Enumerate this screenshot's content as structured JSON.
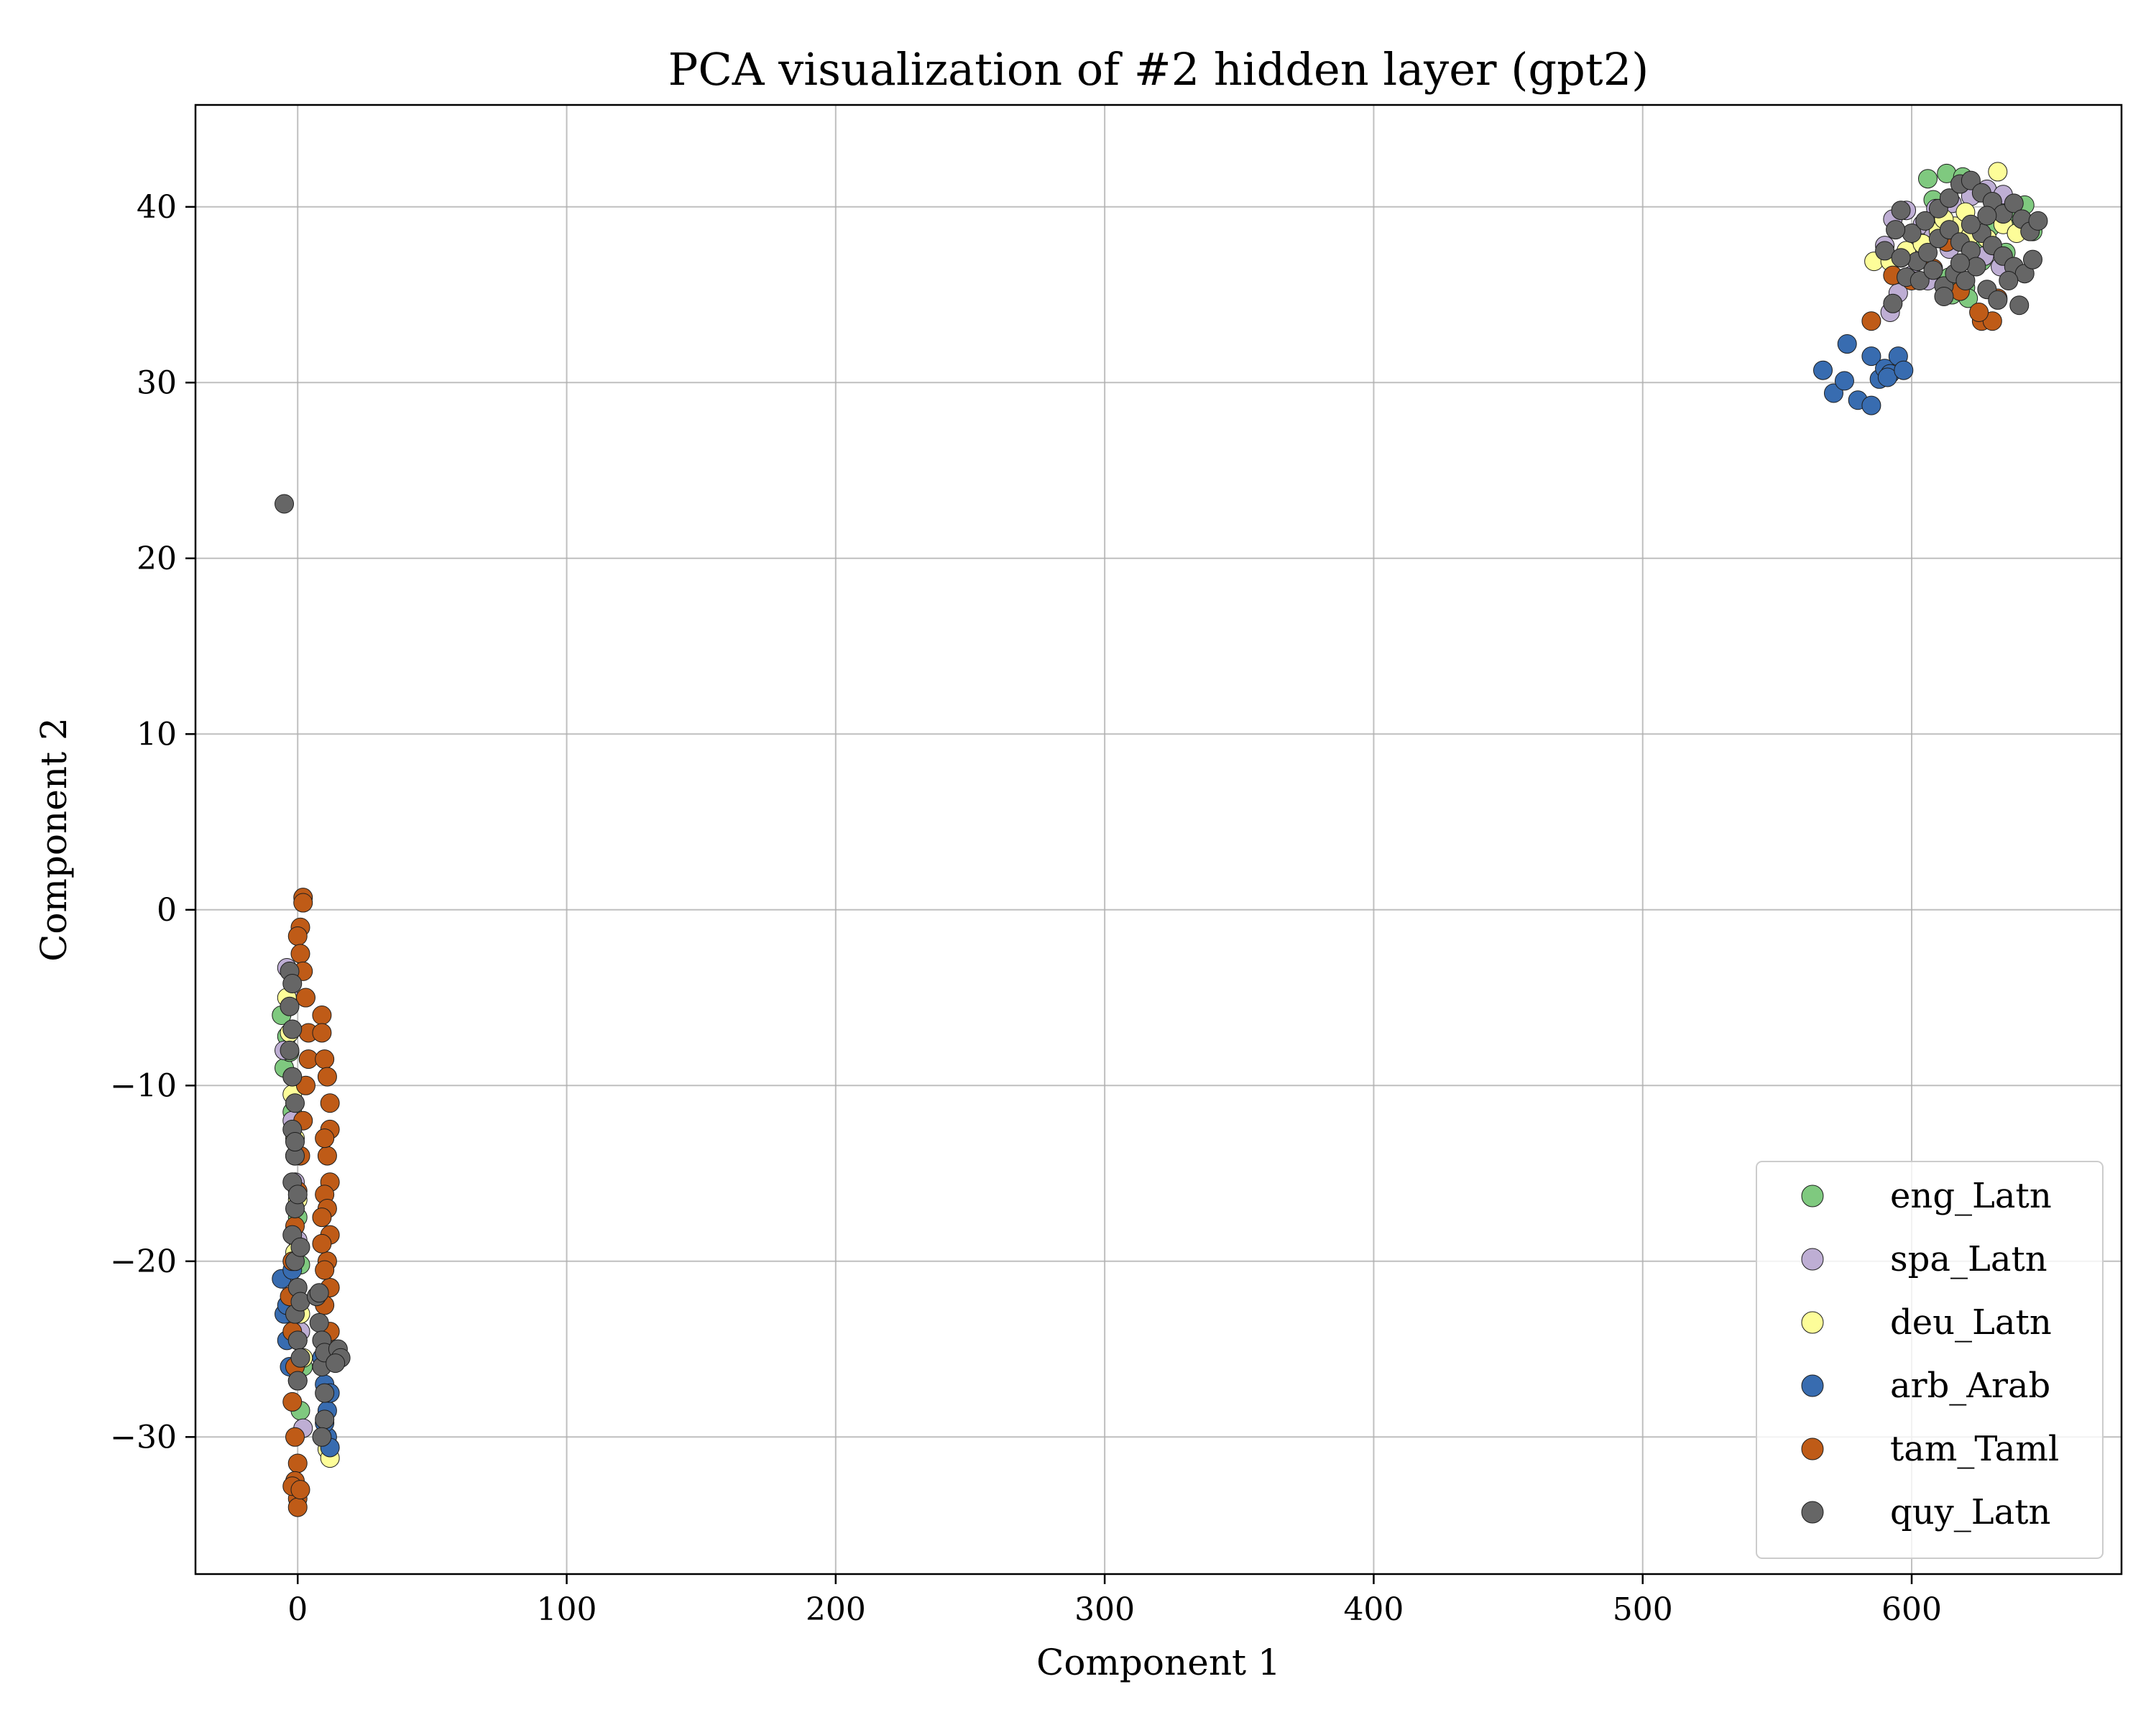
{
  "chart_data": {
    "type": "scatter",
    "title": "PCA visualization of #2 hidden layer (gpt2)",
    "xlabel": "Component 1",
    "ylabel": "Component 2",
    "xlim": [
      -38,
      678
    ],
    "ylim": [
      -37.8,
      45.8
    ],
    "xticks": [
      0,
      100,
      200,
      300,
      400,
      500,
      600
    ],
    "yticks": [
      -30,
      -20,
      -10,
      0,
      10,
      20,
      30,
      40
    ],
    "xtick_labels": [
      "0",
      "100",
      "200",
      "300",
      "400",
      "500",
      "600"
    ],
    "ytick_labels": [
      "−30",
      "−20",
      "−10",
      "0",
      "10",
      "20",
      "30",
      "40"
    ],
    "grid": true,
    "legend_position": "bottom-right",
    "series": [
      {
        "name": "eng_Latn",
        "color": "#7fc97f",
        "points": [
          [
            -6,
            -6.0
          ],
          [
            -4,
            -7.2
          ],
          [
            -5,
            -9.0
          ],
          [
            -3,
            -8.1
          ],
          [
            -2,
            -11.5
          ],
          [
            -1,
            -14.0
          ],
          [
            0,
            -17.5
          ],
          [
            1,
            -20.2
          ],
          [
            -2,
            -22.0
          ],
          [
            0,
            -24.5
          ],
          [
            2,
            -26.0
          ],
          [
            1,
            -28.5
          ],
          [
            606,
            41.6
          ],
          [
            613,
            41.9
          ],
          [
            619,
            41.7
          ],
          [
            625,
            40.8
          ],
          [
            631,
            40.2
          ],
          [
            638,
            39.6
          ],
          [
            642,
            40.1
          ],
          [
            611,
            39.2
          ],
          [
            617,
            38.5
          ],
          [
            623,
            37.9
          ],
          [
            629,
            38.8
          ],
          [
            635,
            37.4
          ],
          [
            640,
            38.9
          ],
          [
            645,
            38.6
          ],
          [
            608,
            40.4
          ],
          [
            614,
            36.0
          ],
          [
            620,
            35.4
          ],
          [
            626,
            36.9
          ],
          [
            615,
            35.0
          ],
          [
            621,
            34.8
          ]
        ]
      },
      {
        "name": "spa_Latn",
        "color": "#beaed4",
        "points": [
          [
            -4,
            -3.3
          ],
          [
            -3,
            -5.0
          ],
          [
            -5,
            -8.0
          ],
          [
            -2,
            -12.0
          ],
          [
            -1,
            -15.5
          ],
          [
            0,
            -18.8
          ],
          [
            -2,
            -21.5
          ],
          [
            1,
            -24.0
          ],
          [
            0,
            -26.8
          ],
          [
            2,
            -29.5
          ],
          [
            593,
            39.3
          ],
          [
            598,
            39.8
          ],
          [
            604,
            39.0
          ],
          [
            609,
            39.9
          ],
          [
            615,
            40.2
          ],
          [
            622,
            40.6
          ],
          [
            628,
            41.0
          ],
          [
            634,
            40.7
          ],
          [
            590,
            37.8
          ],
          [
            596,
            37.1
          ],
          [
            602,
            37.5
          ],
          [
            608,
            38.3
          ],
          [
            614,
            37.6
          ],
          [
            620,
            38.0
          ],
          [
            627,
            37.2
          ],
          [
            633,
            36.6
          ],
          [
            592,
            34.0
          ],
          [
            595,
            35.1
          ],
          [
            600,
            36.1
          ],
          [
            606,
            35.8
          ]
        ]
      },
      {
        "name": "deu_Latn",
        "color": "#fdfd99",
        "points": [
          [
            -4,
            -5.0
          ],
          [
            -3,
            -7.0
          ],
          [
            -2,
            -10.5
          ],
          [
            -1,
            -13.0
          ],
          [
            0,
            -16.5
          ],
          [
            -1,
            -19.5
          ],
          [
            1,
            -23.0
          ],
          [
            2,
            -25.5
          ],
          [
            11,
            -30.7
          ],
          [
            12,
            -31.2
          ],
          [
            586,
            36.9
          ],
          [
            592,
            36.9
          ],
          [
            598,
            37.5
          ],
          [
            604,
            37.9
          ],
          [
            610,
            38.6
          ],
          [
            616,
            38.9
          ],
          [
            622,
            38.4
          ],
          [
            628,
            38.2
          ],
          [
            632,
            42.0
          ],
          [
            634,
            39.0
          ],
          [
            639,
            38.5
          ],
          [
            620,
            39.7
          ],
          [
            612,
            39.3
          ]
        ]
      },
      {
        "name": "arb_Arab",
        "color": "#386cb0",
        "points": [
          [
            -6,
            -21.0
          ],
          [
            -5,
            -23.0
          ],
          [
            -4,
            -24.5
          ],
          [
            -3,
            -26.0
          ],
          [
            -4,
            -22.5
          ],
          [
            -2,
            -20.5
          ],
          [
            9,
            -25.5
          ],
          [
            10,
            -27.0
          ],
          [
            11,
            -28.5
          ],
          [
            11,
            -30.0
          ],
          [
            12,
            -30.6
          ],
          [
            10,
            -29.2
          ],
          [
            12,
            -27.5
          ],
          [
            567,
            30.7
          ],
          [
            571,
            29.4
          ],
          [
            575,
            30.1
          ],
          [
            576,
            32.2
          ],
          [
            580,
            29.0
          ],
          [
            585,
            28.7
          ],
          [
            585,
            31.5
          ],
          [
            588,
            30.2
          ],
          [
            590,
            30.8
          ],
          [
            592,
            30.5
          ],
          [
            591,
            30.3
          ],
          [
            595,
            31.5
          ],
          [
            597,
            30.7
          ]
        ]
      },
      {
        "name": "tam_Taml",
        "color": "#bf5b17",
        "points": [
          [
            2,
            0.7
          ],
          [
            2,
            0.4
          ],
          [
            1,
            -1.0
          ],
          [
            0,
            -1.5
          ],
          [
            1,
            -2.5
          ],
          [
            2,
            -3.5
          ],
          [
            3,
            -5.0
          ],
          [
            4,
            -7.0
          ],
          [
            4,
            -8.5
          ],
          [
            3,
            -10.0
          ],
          [
            2,
            -12.0
          ],
          [
            1,
            -14.0
          ],
          [
            0,
            -16.0
          ],
          [
            -1,
            -18.0
          ],
          [
            -2,
            -20.0
          ],
          [
            -3,
            -22.0
          ],
          [
            -2,
            -24.0
          ],
          [
            -1,
            -26.0
          ],
          [
            -2,
            -28.0
          ],
          [
            -1,
            -30.0
          ],
          [
            0,
            -31.5
          ],
          [
            -1,
            -32.5
          ],
          [
            0,
            -33.5
          ],
          [
            0,
            -34.0
          ],
          [
            -2,
            -32.8
          ],
          [
            1,
            -33.0
          ],
          [
            9,
            -6.0
          ],
          [
            9,
            -7.0
          ],
          [
            10,
            -8.5
          ],
          [
            11,
            -9.5
          ],
          [
            12,
            -11.0
          ],
          [
            12,
            -12.5
          ],
          [
            11,
            -14.0
          ],
          [
            12,
            -15.5
          ],
          [
            10,
            -16.2
          ],
          [
            11,
            -17.0
          ],
          [
            12,
            -18.5
          ],
          [
            11,
            -20.0
          ],
          [
            12,
            -21.5
          ],
          [
            10,
            -22.5
          ],
          [
            12,
            -24.0
          ],
          [
            11,
            -25.0
          ],
          [
            9,
            -19.0
          ],
          [
            10,
            -20.5
          ],
          [
            9,
            -17.5
          ],
          [
            10,
            -13.0
          ],
          [
            585,
            33.5
          ],
          [
            593,
            36.1
          ],
          [
            600,
            35.8
          ],
          [
            608,
            36.5
          ],
          [
            618,
            35.2
          ],
          [
            626,
            33.5
          ],
          [
            630,
            33.5
          ],
          [
            632,
            34.8
          ],
          [
            625,
            34.0
          ],
          [
            613,
            38.0
          ]
        ]
      },
      {
        "name": "quy_Latn",
        "color": "#666666",
        "points": [
          [
            -5,
            23.1
          ],
          [
            -3,
            -3.5
          ],
          [
            -2,
            -4.2
          ],
          [
            -3,
            -5.5
          ],
          [
            -2,
            -6.8
          ],
          [
            -3,
            -8.0
          ],
          [
            -2,
            -9.5
          ],
          [
            -1,
            -11.0
          ],
          [
            -2,
            -12.5
          ],
          [
            -1,
            -14.0
          ],
          [
            -2,
            -15.5
          ],
          [
            -1,
            -17.0
          ],
          [
            -2,
            -18.5
          ],
          [
            -1,
            -20.0
          ],
          [
            0,
            -21.5
          ],
          [
            -1,
            -23.0
          ],
          [
            0,
            -24.5
          ],
          [
            1,
            -25.5
          ],
          [
            0,
            -26.8
          ],
          [
            -1,
            -13.2
          ],
          [
            0,
            -16.2
          ],
          [
            1,
            -19.2
          ],
          [
            1,
            -22.3
          ],
          [
            7,
            -22.0
          ],
          [
            8,
            -23.5
          ],
          [
            9,
            -24.5
          ],
          [
            9,
            -26.0
          ],
          [
            10,
            -27.5
          ],
          [
            10,
            -29.0
          ],
          [
            9,
            -30.0
          ],
          [
            10,
            -25.2
          ],
          [
            8,
            -21.8
          ],
          [
            15,
            -25.0
          ],
          [
            16,
            -25.5
          ],
          [
            14,
            -25.8
          ],
          [
            596,
            39.8
          ],
          [
            600,
            38.5
          ],
          [
            605,
            39.2
          ],
          [
            610,
            39.9
          ],
          [
            614,
            40.5
          ],
          [
            618,
            41.3
          ],
          [
            622,
            41.5
          ],
          [
            626,
            40.8
          ],
          [
            630,
            40.3
          ],
          [
            634,
            39.6
          ],
          [
            638,
            40.2
          ],
          [
            641,
            39.3
          ],
          [
            644,
            38.6
          ],
          [
            647,
            39.2
          ],
          [
            602,
            36.9
          ],
          [
            606,
            37.4
          ],
          [
            610,
            38.2
          ],
          [
            614,
            38.7
          ],
          [
            618,
            38.0
          ],
          [
            622,
            37.5
          ],
          [
            626,
            38.5
          ],
          [
            630,
            37.8
          ],
          [
            634,
            37.2
          ],
          [
            638,
            36.6
          ],
          [
            642,
            36.2
          ],
          [
            645,
            37.0
          ],
          [
            598,
            36.0
          ],
          [
            603,
            35.8
          ],
          [
            608,
            36.4
          ],
          [
            612,
            35.5
          ],
          [
            616,
            36.2
          ],
          [
            620,
            35.8
          ],
          [
            624,
            36.6
          ],
          [
            628,
            35.3
          ],
          [
            632,
            34.7
          ],
          [
            636,
            35.8
          ],
          [
            640,
            34.4
          ],
          [
            594,
            38.7
          ],
          [
            590,
            37.5
          ],
          [
            596,
            37.1
          ],
          [
            593,
            34.5
          ],
          [
            612,
            34.9
          ],
          [
            618,
            36.8
          ],
          [
            622,
            39.0
          ],
          [
            628,
            39.5
          ]
        ]
      }
    ]
  }
}
